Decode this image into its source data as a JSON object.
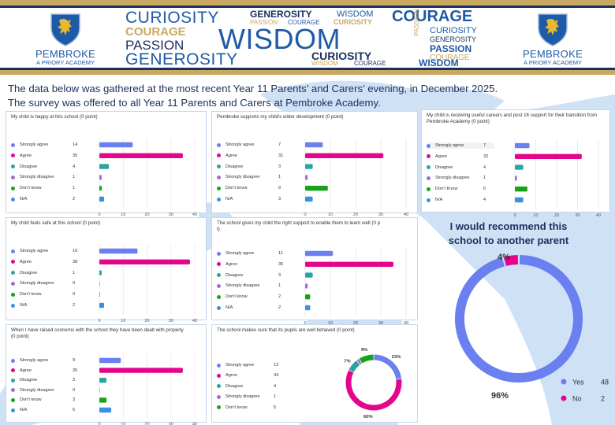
{
  "header": {
    "logo_left": {
      "name": "PEMBROKE",
      "subtitle": "A PRIORY ACADEMY"
    },
    "logo_right": {
      "name": "PEMBROKE",
      "subtitle": "A PRIORY ACADEMY"
    },
    "wordcloud": [
      "CURIOSITY",
      "GENEROSITY",
      "WISDOM",
      "COURAGE",
      "PASSION",
      "COURAGE",
      "CURIOSITY",
      "COURAGE",
      "PASSION",
      "WISDOM",
      "GENEROSITY",
      "CURIOSITY",
      "PASSION",
      "CURIOSITY",
      "GENEROSITY",
      "PASSION",
      "COURAGE",
      "WISDOM",
      "COURAGE",
      "WISDOM"
    ]
  },
  "intro": {
    "line1": "The data below was gathered at the most recent Year 11 Parents’ and Carers’ evening, in December 2025.",
    "line2": "The survey was offered to all Year 11 Parents and Carers at Pembroke Academy."
  },
  "colors": {
    "strongly_agree": "#6a7ff0",
    "agree": "#e3068c",
    "disagree": "#2aa3a3",
    "strongly_disagree": "#9c6fd0",
    "dont_know": "#17a317",
    "na": "#3b90e0",
    "navy": "#1b2f5e",
    "gold": "#c9a961"
  },
  "chart_data": [
    {
      "type": "bar",
      "title": "My child is happy at this school (0 point)",
      "categories": [
        "Strongly agree",
        "Agree",
        "Disagree",
        "Strongly disagree",
        "Don't know",
        "N/A"
      ],
      "values": [
        14,
        35,
        4,
        1,
        1,
        2
      ],
      "xticks": [
        "0",
        "10",
        "20",
        "30",
        "40"
      ],
      "xlim": [
        0,
        40
      ],
      "grid": true
    },
    {
      "type": "bar",
      "title": "Pembroke supports my child's wider development (0 point)",
      "categories": [
        "Strongly agree",
        "Agree",
        "Disagree",
        "Strongly disagree",
        "Don't know",
        "N/A"
      ],
      "values": [
        7,
        31,
        3,
        1,
        9,
        3
      ],
      "xticks": [
        "0",
        "10",
        "20",
        "30",
        "40"
      ],
      "xlim": [
        0,
        40
      ],
      "grid": true
    },
    {
      "type": "bar",
      "title_line1": "My child is receiving useful careers and post 16 support for their transition from",
      "title_line2": "Pembroke Academy   (0 point)",
      "categories": [
        "Strongly agree",
        "Agree",
        "Disagree",
        "Strongly disagree",
        "Don't Know",
        "N/A"
      ],
      "values": [
        7,
        32,
        4,
        1,
        6,
        4
      ],
      "xticks": [
        "0",
        "10",
        "20",
        "30",
        "40"
      ],
      "xlim": [
        0,
        40
      ],
      "grid": true
    },
    {
      "type": "bar",
      "title": "My child feels safe at this school (0 point)",
      "categories": [
        "Strongly agree",
        "Agree",
        "Disagree",
        "Strongly disagree",
        "Don't know",
        "N/A"
      ],
      "values": [
        16,
        38,
        1,
        0,
        0,
        2
      ],
      "xticks": [
        "0",
        "10",
        "20",
        "30",
        "40"
      ],
      "xlim": [
        0,
        40
      ],
      "grid": true
    },
    {
      "type": "bar",
      "title_line1": "The school gives my child the right support to enable them to learn well (0 p",
      "title_line2": "t)",
      "categories": [
        "Strongly agree",
        "Agree",
        "Disagree",
        "Strongly disagree",
        "Don't know",
        "N/A"
      ],
      "values": [
        11,
        35,
        3,
        1,
        2,
        2
      ],
      "xticks": [
        "0",
        "10",
        "20",
        "30",
        "40"
      ],
      "xlim": [
        0,
        40
      ],
      "grid": true
    },
    {
      "type": "bar",
      "title_line1": "When I have raised concerns with the school they have been dealt with properly",
      "title_line2": "(0 point)",
      "categories": [
        "Strongly agree",
        "Agree",
        "Disagree",
        "Strongly disagree",
        "Don't know",
        "N/A"
      ],
      "values": [
        9,
        35,
        3,
        0,
        3,
        5
      ],
      "xticks": [
        "0",
        "10",
        "20",
        "30",
        "40"
      ],
      "xlim": [
        0,
        40
      ],
      "grid": true
    },
    {
      "type": "pie",
      "title": "The school makes sure that its pupils are well behaved (0 point)",
      "categories": [
        "Strongly agree",
        "Agree",
        "Disagree",
        "Strongly disagree",
        "Don't know"
      ],
      "values": [
        13,
        34,
        4,
        1,
        5
      ],
      "data_labels": [
        "23%",
        "60%",
        "7%",
        "",
        "9%"
      ]
    },
    {
      "type": "pie",
      "title": "I would recommend this school to another parent",
      "categories": [
        "Yes",
        "No"
      ],
      "values": [
        48,
        2
      ],
      "data_labels": [
        "96%",
        "4%"
      ],
      "legend_position": "bottom-right"
    }
  ]
}
